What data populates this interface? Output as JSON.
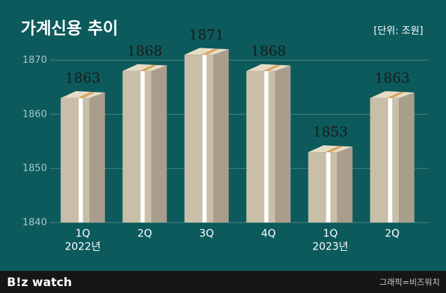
{
  "chart_data": {
    "type": "bar",
    "title": "가계신용 추이",
    "unit": "[단위: 조원]",
    "categories": [
      "1Q",
      "2Q",
      "3Q",
      "4Q",
      "1Q",
      "2Q"
    ],
    "year_labels": [
      "2022년",
      null,
      null,
      null,
      "2023년",
      null
    ],
    "values": [
      1863,
      1868,
      1871,
      1868,
      1853,
      1863
    ],
    "color": "#c9bea8",
    "ylim": [
      1840,
      1873
    ],
    "yticks": [
      1840,
      1850,
      1860,
      1870
    ],
    "grid": true
  },
  "footer": {
    "logo": "B!z watch",
    "credit": "그래픽=비즈워치"
  }
}
